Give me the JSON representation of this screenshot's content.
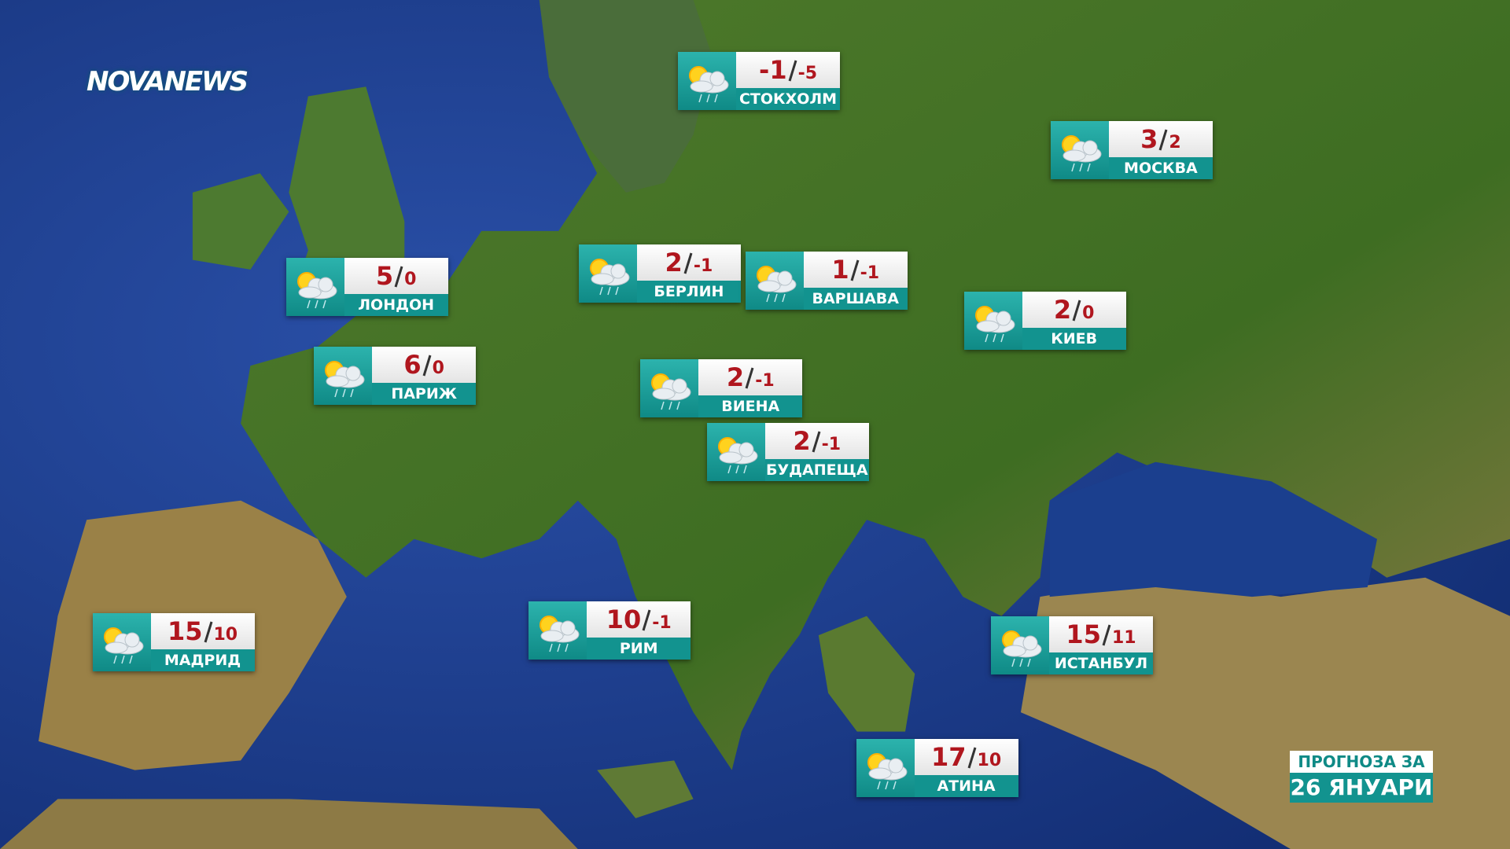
{
  "logo": "NOVANEWS",
  "forecast": {
    "label": "ПРОГНОЗА ЗА",
    "date": "26 ЯНУАРИ"
  },
  "cities": [
    {
      "name": "СТОКХОЛМ",
      "high": -1,
      "low": -5
    },
    {
      "name": "МОСКВА",
      "high": 3,
      "low": 2
    },
    {
      "name": "ЛОНДОН",
      "high": 5,
      "low": 0
    },
    {
      "name": "БЕРЛИН",
      "high": 2,
      "low": -1
    },
    {
      "name": "ВАРШАВА",
      "high": 1,
      "low": -1
    },
    {
      "name": "КИЕВ",
      "high": 2,
      "low": 0
    },
    {
      "name": "ПАРИЖ",
      "high": 6,
      "low": 0
    },
    {
      "name": "ВИЕНА",
      "high": 2,
      "low": -1
    },
    {
      "name": "БУДАПЕЩА",
      "high": 2,
      "low": -1
    },
    {
      "name": "МАДРИД",
      "high": 15,
      "low": 10
    },
    {
      "name": "РИМ",
      "high": 10,
      "low": -1
    },
    {
      "name": "ИСТАНБУЛ",
      "high": 15,
      "low": 11
    },
    {
      "name": "АТИНА",
      "high": 17,
      "low": 10
    }
  ]
}
